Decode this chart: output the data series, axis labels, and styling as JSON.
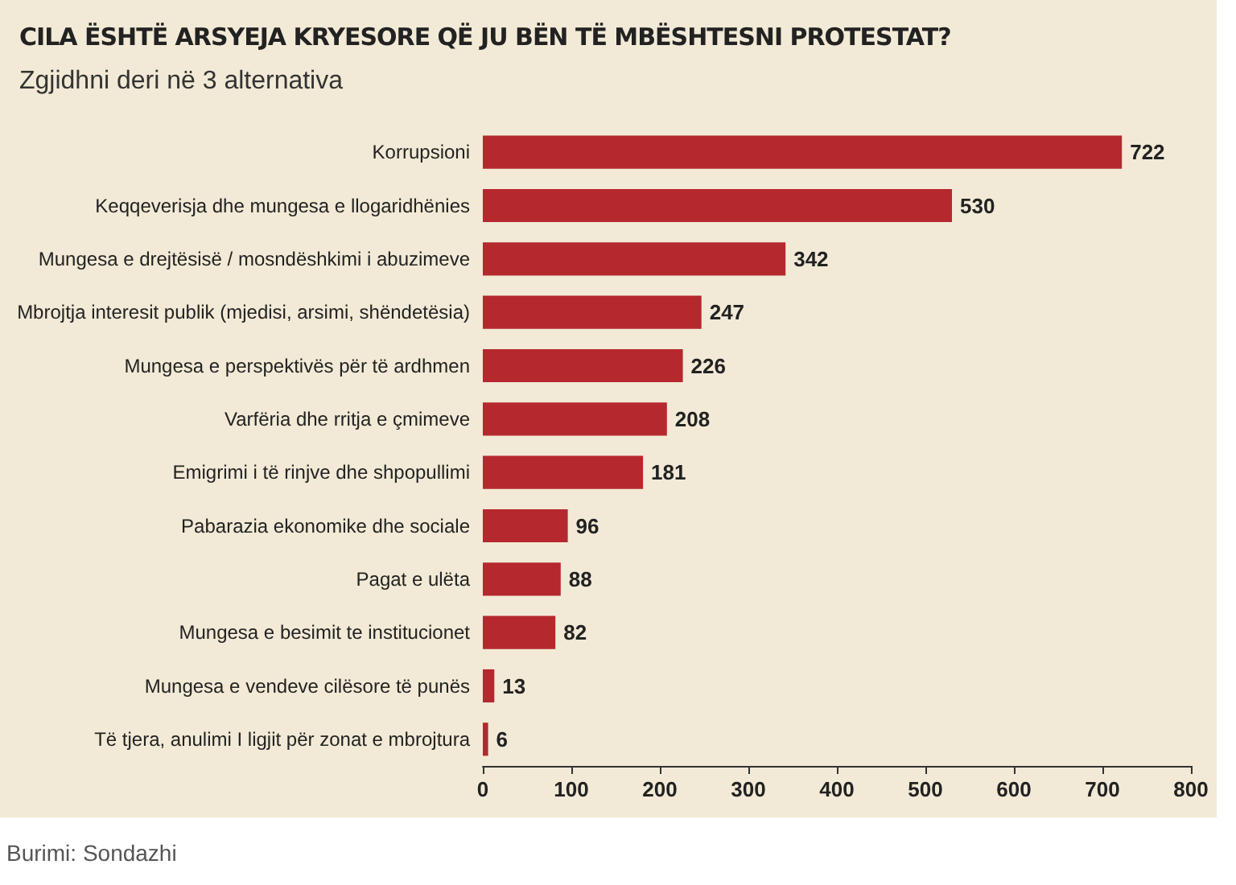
{
  "chart_data": {
    "type": "bar",
    "orientation": "horizontal",
    "title": "CILA ËSHTË ARSYEJA KRYESORE QË JU BËN TË MBËSHTESNI PROTESTAT?",
    "subtitle": "Zgjidhni deri në 3 alternativa",
    "categories": [
      "Korrupsioni",
      "Keqqeverisja dhe mungesa e llogaridhënies",
      "Mungesa e drejtësisë / mosndëshkimi i abuzimeve",
      "Mbrojtja interesit publik (mjedisi, arsimi, shëndetësia)",
      "Mungesa e perspektivës për të ardhmen",
      "Varfëria dhe rritja e çmimeve",
      "Emigrimi i të rinjve dhe shpopullimi",
      "Pabarazia ekonomike dhe sociale",
      "Pagat e ulëta",
      "Mungesa e besimit te institucionet",
      "Mungesa e vendeve cilësore të punës",
      "Të tjera, anulimi I ligjit për zonat e mbrojtura"
    ],
    "values": [
      722,
      530,
      342,
      247,
      226,
      208,
      181,
      96,
      88,
      82,
      13,
      6
    ],
    "color": "#b5282e",
    "data_labels": true,
    "grid": false,
    "xlim": [
      0,
      800
    ],
    "xticks": [
      0,
      100,
      200,
      300,
      400,
      500,
      600,
      700,
      800
    ],
    "annotations": [
      "Burimi: Sondazhi"
    ]
  }
}
